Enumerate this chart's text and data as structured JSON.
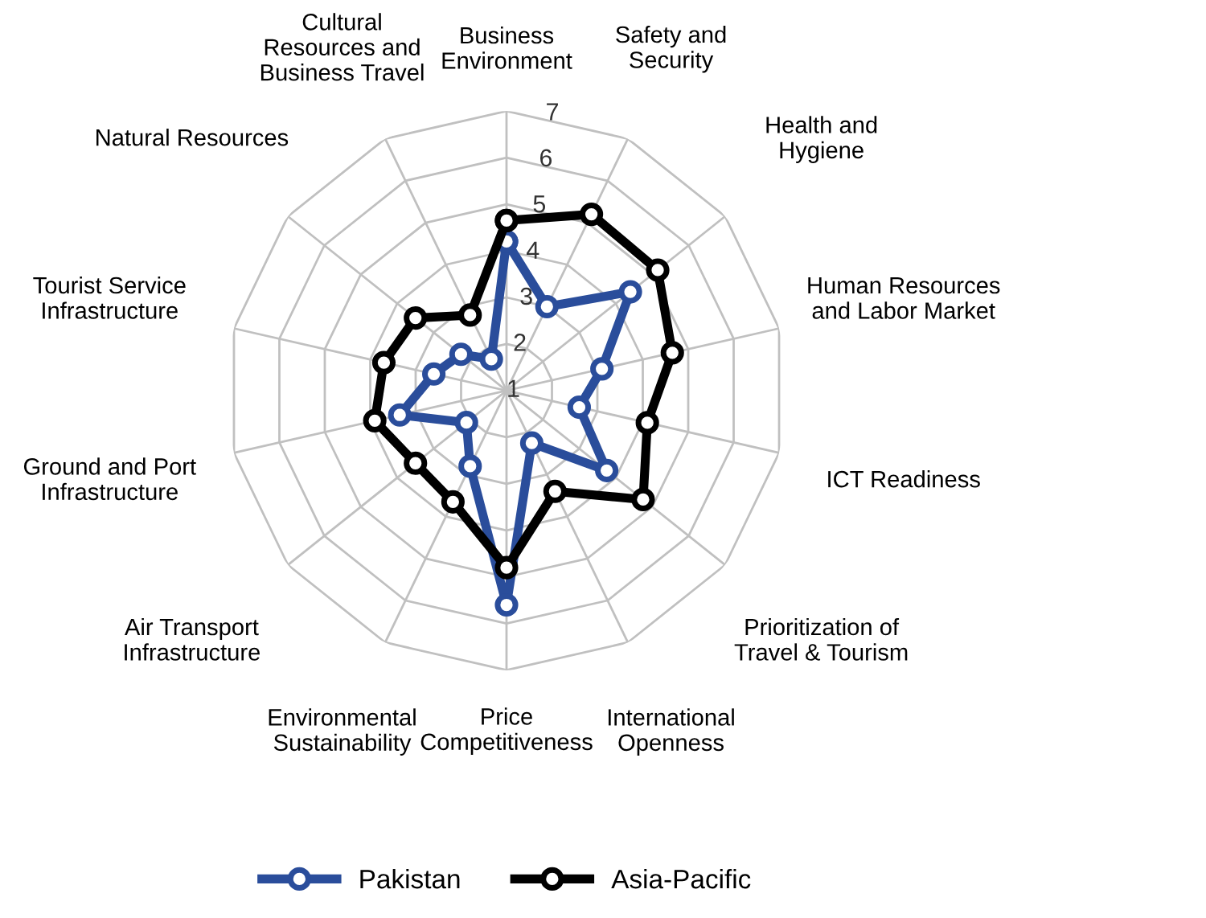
{
  "chart_data": {
    "type": "radar",
    "categories": [
      "Business Environment",
      "Safety and Security",
      "Health and Hygiene",
      "Human Resources and Labor Market",
      "ICT Readiness",
      "Prioritization of Travel & Tourism",
      "International Openness",
      "Price Competitiveness",
      "Environmental Sustainability",
      "Air Transport Infrastructure",
      "Ground and Port Infrastructure",
      "Tourist Service Infrastructure",
      "Natural Resources",
      "Cultural Resources and Business Travel"
    ],
    "series": [
      {
        "name": "Pakistan",
        "color": "#2a4d9b",
        "values": [
          4.2,
          3.0,
          4.4,
          3.1,
          2.6,
          3.75,
          2.25,
          5.6,
          2.8,
          2.1,
          3.35,
          2.6,
          2.25,
          1.75
        ]
      },
      {
        "name": "Asia-Pacific",
        "color": "#000000",
        "values": [
          4.65,
          5.2,
          5.15,
          4.65,
          4.1,
          4.75,
          3.4,
          4.8,
          3.65,
          3.5,
          3.9,
          3.7,
          3.5,
          2.8
        ]
      }
    ],
    "ylim": [
      1,
      7
    ],
    "yticks": [
      1,
      2,
      3,
      4,
      5,
      6,
      7
    ],
    "grid": true,
    "legend": "bottom",
    "marker": "circle",
    "line_style": "solid"
  }
}
